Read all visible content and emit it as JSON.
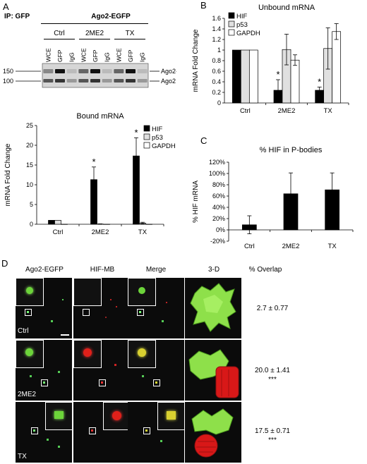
{
  "panelA": {
    "letter": "A",
    "ip_label": "IP: GFP",
    "construct": "Ago2-EGFP",
    "groups": [
      "Ctrl",
      "2ME2",
      "TX"
    ],
    "lanes": [
      "WCE",
      "GFP",
      "IgG",
      "WCE",
      "GFP",
      "IgG",
      "WCE",
      "GFP",
      "IgG"
    ],
    "markers": [
      "150",
      "100"
    ],
    "band_labels": [
      "Ago2-EGFP",
      "Ago2"
    ]
  },
  "charts": {
    "bound": {
      "type": "bar",
      "title": "Bound mRNA",
      "ylabel": "mRNA Fold Change",
      "categories": [
        "Ctrl",
        "2ME2",
        "TX"
      ],
      "ylim": [
        0,
        25
      ],
      "yticks": [
        "0",
        "5",
        "10",
        "15",
        "20",
        "25"
      ],
      "series": [
        {
          "name": "HIF",
          "color": "#000000",
          "values": [
            1.0,
            11.3,
            17.3
          ],
          "errors": [
            0,
            3.2,
            4.6
          ]
        },
        {
          "name": "p53",
          "color": "#e0e0e0",
          "values": [
            1.0,
            0.05,
            0.3
          ],
          "errors": [
            0,
            0.05,
            0.2
          ]
        },
        {
          "name": "GAPDH",
          "color": "#ffffff",
          "values": [
            0,
            0,
            0
          ],
          "errors": [
            0,
            0,
            0
          ]
        }
      ],
      "asterisks": [
        "",
        "*",
        "*"
      ]
    },
    "unbound": {
      "type": "bar",
      "title": "Unbound mRNA",
      "ylabel": "mRNA Fold Change",
      "categories": [
        "Ctrl",
        "2ME2",
        "TX"
      ],
      "ylim": [
        0,
        1.6
      ],
      "yticks": [
        "0",
        "0.2",
        "0.4",
        "0.6",
        "0.8",
        "1",
        "1.2",
        "1.4",
        "1.6"
      ],
      "series": [
        {
          "name": "HIF",
          "color": "#000000",
          "values": [
            1.0,
            0.24,
            0.24
          ],
          "errors": [
            0,
            0.2,
            0.06
          ]
        },
        {
          "name": "p53",
          "color": "#e0e0e0",
          "values": [
            1.0,
            1.01,
            1.03
          ],
          "errors": [
            0,
            0.29,
            0.39
          ]
        },
        {
          "name": "GAPDH",
          "color": "#ffffff",
          "values": [
            1.0,
            0.81,
            1.35
          ],
          "errors": [
            0,
            0.1,
            0.15
          ]
        }
      ],
      "asterisks": [
        "",
        "*",
        "*"
      ]
    },
    "pbodies": {
      "type": "bar",
      "title": "% HIF in P-bodies",
      "ylabel": "% HIF mRNA",
      "categories": [
        "Ctrl",
        "2ME2",
        "TX"
      ],
      "ylim": [
        -20,
        120
      ],
      "yticks": [
        "-20%",
        "0%",
        "20%",
        "40%",
        "60%",
        "80%",
        "100%",
        "120%"
      ],
      "series": [
        {
          "name": "HIF",
          "color": "#000000",
          "values": [
            9,
            64,
            71
          ],
          "errors": [
            16,
            37,
            30
          ]
        }
      ],
      "asterisks": [
        "",
        "",
        ""
      ]
    }
  },
  "panelB": {
    "letter": "B"
  },
  "panelC": {
    "letter": "C"
  },
  "panelD": {
    "letter": "D",
    "columns": [
      "Ago2-EGFP",
      "HIF-MB",
      "Merge",
      "3-D",
      "% Overlap"
    ],
    "rows": [
      {
        "label": "Ctrl",
        "overlap": "2.7 ± 0.77",
        "sig": ""
      },
      {
        "label": "2ME2",
        "overlap": "20.0 ± 1.41",
        "sig": "***"
      },
      {
        "label": "TX",
        "overlap": "17.5 ± 0.71",
        "sig": "***"
      }
    ]
  }
}
